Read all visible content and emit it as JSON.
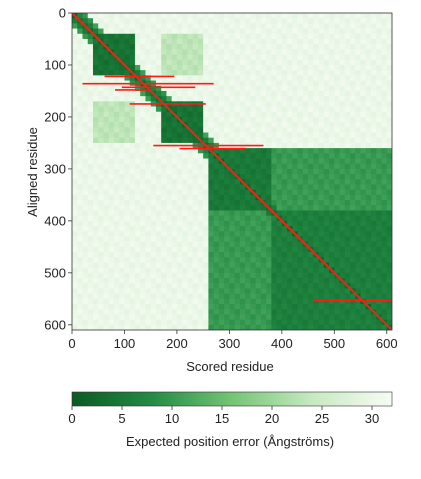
{
  "chart_data": {
    "type": "heatmap",
    "xlabel": "Scored residue",
    "ylabel": "Aligned residue",
    "xlim": [
      0,
      610
    ],
    "ylim": [
      0,
      610
    ],
    "x_ticks": [
      0,
      100,
      200,
      300,
      400,
      500,
      600
    ],
    "y_ticks": [
      0,
      100,
      200,
      300,
      400,
      500,
      600
    ],
    "x_tick_labels": [
      "0",
      "100",
      "200",
      "300",
      "400",
      "500",
      "600"
    ],
    "y_tick_labels": [
      "0",
      "100",
      "200",
      "300",
      "400",
      "500",
      "600"
    ],
    "colorbar": {
      "label": "Expected position error (Ångströms)",
      "range": [
        0,
        32
      ],
      "ticks": [
        0,
        5,
        10,
        15,
        20,
        25,
        30
      ],
      "tick_labels": [
        "0",
        "5",
        "10",
        "15",
        "20",
        "25",
        "30"
      ],
      "color_low": "#0b5a22",
      "color_high": "#f7fcf5"
    },
    "domains": [
      {
        "start": 40,
        "end": 120,
        "error": 3
      },
      {
        "start": 170,
        "end": 255,
        "error": 3
      },
      {
        "start": 260,
        "end": 380,
        "error": 4
      },
      {
        "start": 380,
        "end": 610,
        "error": 5
      }
    ],
    "off_domain_error": 29,
    "diagonal_color": "#e3291a",
    "annotation_color": "#ff1a1a",
    "annotation_segments": [
      {
        "y": 122,
        "x_start": 62,
        "x_end": 195
      },
      {
        "y": 136,
        "x_start": 20,
        "x_end": 270
      },
      {
        "y": 143,
        "x_start": 95,
        "x_end": 235
      },
      {
        "y": 148,
        "x_start": 82,
        "x_end": 150
      },
      {
        "y": 175,
        "x_start": 110,
        "x_end": 255
      },
      {
        "y": 255,
        "x_start": 155,
        "x_end": 365
      },
      {
        "y": 261,
        "x_start": 205,
        "x_end": 330
      },
      {
        "y": 553,
        "x_start": 460,
        "x_end": 610
      }
    ]
  }
}
